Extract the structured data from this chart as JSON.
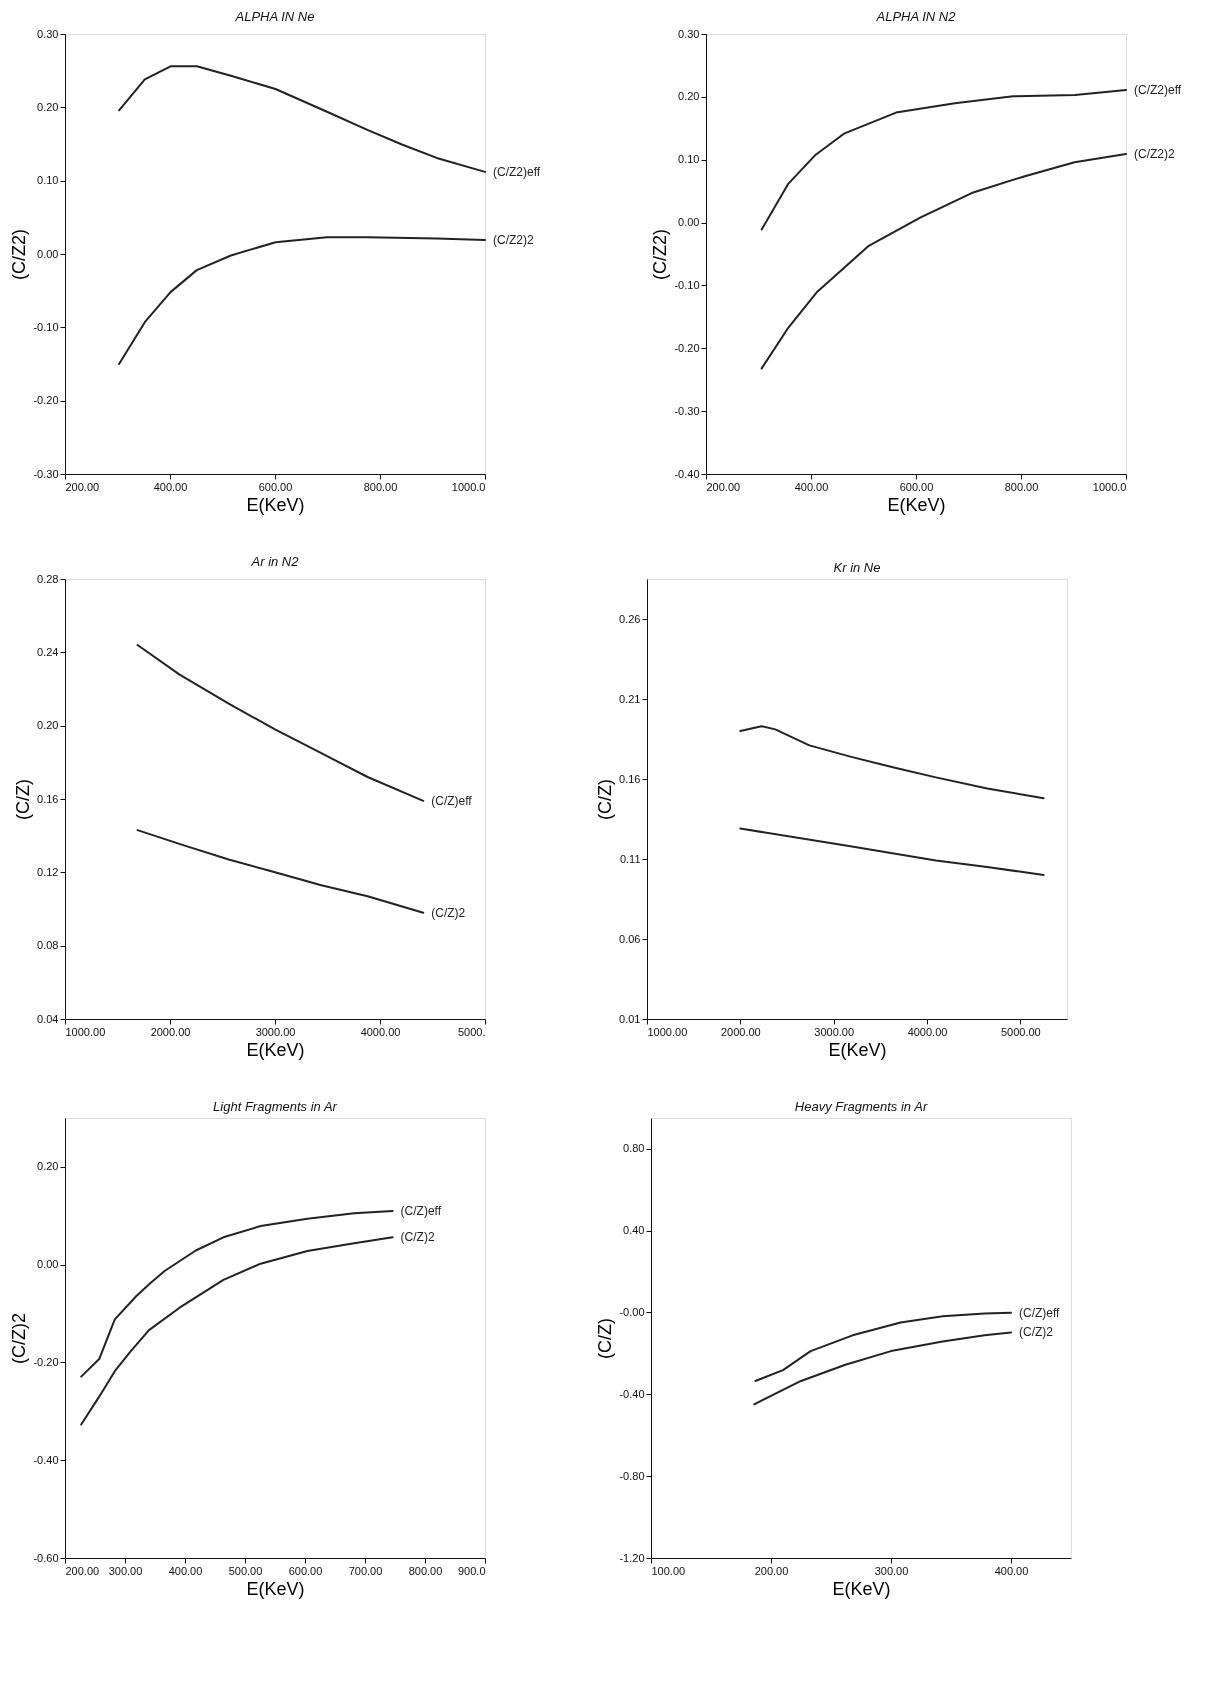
{
  "chart_data": [
    {
      "type": "line",
      "title": "ALPHA IN Ne",
      "xlabel": "E(KeV)",
      "ylabel": "(C/Z2)",
      "xlim": [
        200,
        1000
      ],
      "ylim": [
        -0.3,
        0.3
      ],
      "xticks": [
        {
          "value": 200,
          "label": "200.00"
        },
        {
          "value": 400,
          "label": "400.00"
        },
        {
          "value": 600,
          "label": "600.00"
        },
        {
          "value": 800,
          "label": "800.00"
        },
        {
          "value": 1000,
          "label": "1000.0"
        }
      ],
      "yticks": [
        {
          "value": -0.3,
          "label": "-0.30"
        },
        {
          "value": -0.2,
          "label": "-0.20"
        },
        {
          "value": -0.1,
          "label": "-0.10"
        },
        {
          "value": 0,
          "label": "0.00"
        },
        {
          "value": 0.1,
          "label": "0.10"
        },
        {
          "value": 0.2,
          "label": "0.20"
        },
        {
          "value": 0.3,
          "label": "0.30"
        }
      ],
      "series": [
        {
          "name": "(C/Z2)eff",
          "color": "#222222",
          "x": [
            303,
            352,
            401,
            451,
            516,
            601,
            699,
            777,
            843,
            908,
            1000
          ],
          "values": [
            0.196,
            0.238,
            0.256,
            0.256,
            0.243,
            0.225,
            0.194,
            0.169,
            0.149,
            0.131,
            0.112
          ]
        },
        {
          "name": "(C/Z2)2",
          "color": "#222222",
          "x": [
            303,
            352,
            401,
            451,
            516,
            601,
            699,
            777,
            908,
            1000
          ],
          "values": [
            -0.15,
            -0.093,
            -0.052,
            -0.022,
            -0.002,
            0.016,
            0.023,
            0.023,
            0.021,
            0.019
          ]
        }
      ]
    },
    {
      "type": "line",
      "title": "ALPHA IN N2",
      "xlabel": "E(KeV)",
      "ylabel": "(C/Z2)",
      "xlim": [
        200,
        1000
      ],
      "ylim": [
        -0.4,
        0.3
      ],
      "xticks": [
        {
          "value": 200,
          "label": "200.00"
        },
        {
          "value": 400,
          "label": "400.00"
        },
        {
          "value": 600,
          "label": "600.00"
        },
        {
          "value": 800,
          "label": "800.00"
        },
        {
          "value": 1000,
          "label": "1000.0"
        }
      ],
      "yticks": [
        {
          "value": -0.4,
          "label": "-0.40"
        },
        {
          "value": -0.3,
          "label": "-0.30"
        },
        {
          "value": -0.2,
          "label": "-0.20"
        },
        {
          "value": -0.1,
          "label": "-0.10"
        },
        {
          "value": 0,
          "label": "0.00"
        },
        {
          "value": 0.1,
          "label": "0.10"
        },
        {
          "value": 0.2,
          "label": "0.20"
        },
        {
          "value": 0.3,
          "label": "0.30"
        }
      ],
      "series": [
        {
          "name": "(C/Z2)eff",
          "color": "#222222",
          "x": [
            306,
            357,
            409,
            464,
            562,
            674,
            785,
            903,
            1000
          ],
          "values": [
            -0.011,
            0.062,
            0.108,
            0.142,
            0.175,
            0.19,
            0.201,
            0.203,
            0.211
          ]
        },
        {
          "name": "(C/Z2)2",
          "color": "#222222",
          "x": [
            306,
            357,
            412,
            510,
            608,
            706,
            804,
            902,
            1000
          ],
          "values": [
            -0.232,
            -0.167,
            -0.11,
            -0.037,
            0.008,
            0.047,
            0.073,
            0.096,
            0.109
          ]
        }
      ]
    },
    {
      "type": "line",
      "title": "Ar in N2",
      "xlabel": "E(KeV)",
      "ylabel": "(C/Z)",
      "xlim": [
        1000,
        5000
      ],
      "ylim": [
        0.04,
        0.28
      ],
      "xticks": [
        {
          "value": 1000,
          "label": "1000.00"
        },
        {
          "value": 2000,
          "label": "2000.00"
        },
        {
          "value": 3000,
          "label": "3000.00"
        },
        {
          "value": 4000,
          "label": "4000.00"
        },
        {
          "value": 5000,
          "label": "5000."
        }
      ],
      "yticks": [
        0.04,
        {
          "value": 0.08,
          "label": "0.08"
        },
        0.12,
        0.16,
        {
          "value": 0.2,
          "label": "0.20"
        },
        0.24,
        0.28
      ],
      "series": [
        {
          "name": "(C/Z)eff",
          "color": "#222222",
          "x": [
            1691,
            2088,
            2559,
            3000,
            3441,
            3882,
            4412
          ],
          "values": [
            0.244,
            0.228,
            0.212,
            0.198,
            0.185,
            0.172,
            0.159
          ]
        },
        {
          "name": "(C/Z)2",
          "color": "#222222",
          "x": [
            1691,
            2118,
            2559,
            3000,
            3441,
            3882,
            4412
          ],
          "values": [
            0.143,
            0.135,
            0.127,
            0.12,
            0.113,
            0.107,
            0.098
          ]
        }
      ]
    },
    {
      "type": "line",
      "title": "Kr in Ne",
      "xlabel": "E(KeV)",
      "ylabel": "(C/Z)",
      "xlim": [
        1000,
        5500
      ],
      "ylim": [
        0.01,
        0.285
      ],
      "xticks": [
        {
          "value": 1000,
          "label": "1000.00"
        },
        {
          "value": 2000,
          "label": "2000.00"
        },
        {
          "value": 3000,
          "label": "3000.00"
        },
        {
          "value": 4000,
          "label": "4000.00"
        },
        {
          "value": 5000,
          "label": "5000.00"
        }
      ],
      "yticks": [
        0.01,
        0.06,
        0.11,
        0.16,
        0.21,
        0.26
      ],
      "series": [
        {
          "color": "#222222",
          "x": [
            2000,
            2227,
            2374,
            2740,
            3179,
            3656,
            4095,
            4645,
            5249
          ],
          "values": [
            0.19,
            0.193,
            0.191,
            0.181,
            0.174,
            0.167,
            0.161,
            0.154,
            0.148
          ]
        },
        {
          "color": "#222222",
          "x": [
            2000,
            3179,
            4095,
            4645,
            5249
          ],
          "values": [
            0.129,
            0.118,
            0.109,
            0.105,
            0.1
          ]
        }
      ]
    },
    {
      "type": "line",
      "title": "Light Fragments in Ar",
      "xlabel": "E(KeV)",
      "ylabel": "(C/Z)2",
      "xlim": [
        200,
        900
      ],
      "ylim": [
        -0.6,
        0.3
      ],
      "xticks": [
        {
          "value": 200,
          "label": "200.00"
        },
        {
          "value": 300,
          "label": "300.00"
        },
        {
          "value": 400,
          "label": "400.00"
        },
        {
          "value": 500,
          "label": "500.00"
        },
        {
          "value": 600,
          "label": "600.00"
        },
        {
          "value": 700,
          "label": "700.00"
        },
        {
          "value": 800,
          "label": "800.00"
        },
        {
          "value": 900,
          "label": "900.0"
        }
      ],
      "yticks": [
        {
          "value": -0.6,
          "label": "-0.60"
        },
        {
          "value": -0.4,
          "label": "-0.40"
        },
        {
          "value": -0.2,
          "label": "-0.20"
        },
        {
          "value": 0,
          "label": "0.00"
        },
        {
          "value": 0.2,
          "label": "0.20"
        }
      ],
      "series": [
        {
          "name": "(C/Z)eff",
          "color": "#222222",
          "x": [
            227,
            257,
            283,
            319,
            343,
            366,
            418,
            464,
            526,
            604,
            682,
            746
          ],
          "values": [
            -0.229,
            -0.193,
            -0.112,
            -0.064,
            -0.037,
            -0.013,
            0.029,
            0.056,
            0.079,
            0.094,
            0.105,
            0.11
          ]
        },
        {
          "name": "(C/Z)2",
          "color": "#222222",
          "x": [
            227,
            257,
            283,
            309,
            340,
            391,
            464,
            526,
            604,
            682,
            746
          ],
          "values": [
            -0.327,
            -0.27,
            -0.218,
            -0.178,
            -0.134,
            -0.088,
            -0.031,
            0.002,
            0.028,
            0.044,
            0.056
          ]
        }
      ]
    },
    {
      "type": "line",
      "title": "Heavy Fragments in Ar",
      "xlabel": "E(KeV)",
      "ylabel": "(C/Z)",
      "xlim": [
        100,
        450
      ],
      "ylim": [
        -1.2,
        0.95
      ],
      "xticks": [
        {
          "value": 100,
          "label": "100.00"
        },
        {
          "value": 200,
          "label": "200.00"
        },
        {
          "value": 300,
          "label": "300.00"
        },
        {
          "value": 400,
          "label": "400.00"
        }
      ],
      "yticks": [
        {
          "value": -1.2,
          "label": "-1.20"
        },
        {
          "value": -0.8,
          "label": "-0.80"
        },
        {
          "value": -0.4,
          "label": "-0.40"
        },
        {
          "value": 0,
          "label": "-0.00"
        },
        {
          "value": 0.4,
          "label": "0.40"
        },
        {
          "value": 0.8,
          "label": "0.80"
        }
      ],
      "series": [
        {
          "name": "(C/Z)eff",
          "color": "#222222",
          "x": [
            187,
            210,
            233,
            268,
            308,
            343,
            378,
            400
          ],
          "values": [
            -0.335,
            -0.282,
            -0.189,
            -0.112,
            -0.049,
            -0.019,
            -0.005,
            -0.002
          ]
        },
        {
          "name": "(C/Z)2",
          "color": "#222222",
          "x": [
            186,
            225,
            262,
            300,
            343,
            378,
            400
          ],
          "values": [
            -0.449,
            -0.335,
            -0.256,
            -0.189,
            -0.142,
            -0.112,
            -0.098
          ]
        }
      ]
    }
  ]
}
